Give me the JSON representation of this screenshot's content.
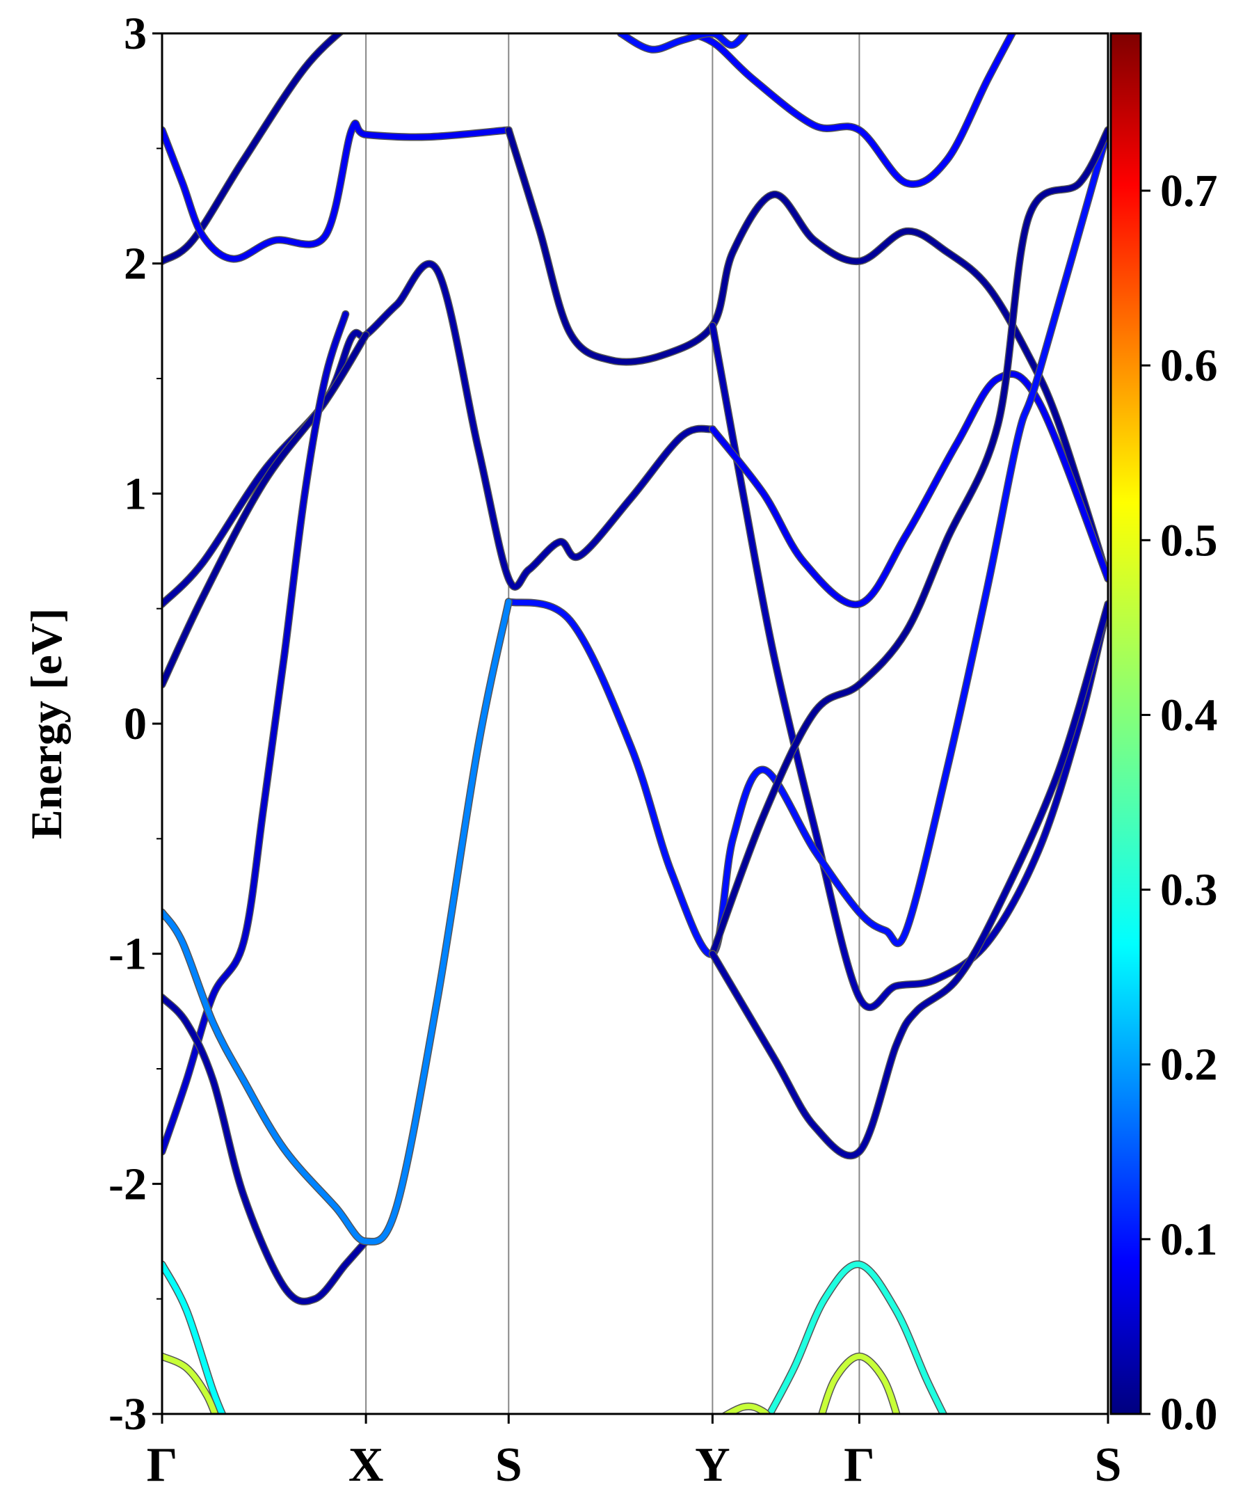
{
  "chart_data": {
    "type": "line",
    "title": "",
    "ylabel": "Energy [eV]",
    "xlabel": "",
    "ylim": [
      -3,
      3
    ],
    "grid": false,
    "y_ticks": [
      {
        "value": -3,
        "label": "-3"
      },
      {
        "value": -2,
        "label": "-2"
      },
      {
        "value": -1,
        "label": "-1"
      },
      {
        "value": 0,
        "label": "0"
      },
      {
        "value": 1,
        "label": "1"
      },
      {
        "value": 2,
        "label": "2"
      },
      {
        "value": 3,
        "label": "3"
      }
    ],
    "y_minor_ticks": [
      -2.5,
      -1.5,
      -0.5,
      0.5,
      1.5,
      2.5
    ],
    "kpoints": [
      {
        "label": "Γ",
        "k": 0
      },
      {
        "label": "X",
        "k": 1
      },
      {
        "label": "S",
        "k": 1.7
      },
      {
        "label": "Y",
        "k": 2.7
      },
      {
        "label": "Γ",
        "k": 3.42
      },
      {
        "label": "S",
        "k": 4.64
      }
    ],
    "colormap": "jet",
    "colorbar": {
      "min": 0.0,
      "max": 0.79,
      "ticks": [
        {
          "value": 0.0,
          "label": "0.0"
        },
        {
          "value": 0.1,
          "label": "0.1"
        },
        {
          "value": 0.2,
          "label": "0.2"
        },
        {
          "value": 0.3,
          "label": "0.3"
        },
        {
          "value": 0.4,
          "label": "0.4"
        },
        {
          "value": 0.5,
          "label": "0.5"
        },
        {
          "value": 0.6,
          "label": "0.6"
        },
        {
          "value": 0.7,
          "label": "0.7"
        }
      ]
    },
    "series": [
      {
        "weight": 0.02,
        "points": [
          [
            0,
            2.01
          ],
          [
            0.15,
            2.1
          ],
          [
            0.4,
            2.45
          ],
          [
            0.7,
            2.85
          ],
          [
            0.93,
            3.05
          ]
        ]
      },
      {
        "weight": 0.09,
        "points": [
          [
            0,
            2.58
          ],
          [
            0.1,
            2.35
          ],
          [
            0.2,
            2.12
          ],
          [
            0.35,
            2.02
          ],
          [
            0.55,
            2.1
          ],
          [
            0.8,
            2.12
          ],
          [
            0.93,
            2.58
          ],
          [
            1.0,
            2.56
          ],
          [
            1.3,
            2.55
          ],
          [
            1.7,
            2.58
          ]
        ]
      },
      {
        "weight": 0.02,
        "points": [
          [
            1.7,
            2.58
          ],
          [
            1.85,
            2.15
          ],
          [
            2.0,
            1.7
          ],
          [
            2.2,
            1.58
          ],
          [
            2.45,
            1.6
          ],
          [
            2.7,
            1.73
          ],
          [
            2.8,
            2.05
          ],
          [
            3.0,
            2.3
          ],
          [
            3.2,
            2.1
          ],
          [
            3.42,
            2.01
          ],
          [
            3.65,
            2.14
          ],
          [
            3.85,
            2.05
          ],
          [
            4.05,
            1.9
          ],
          [
            4.25,
            1.6
          ],
          [
            4.4,
            1.3
          ],
          [
            4.64,
            0.63
          ]
        ]
      },
      {
        "weight": 0.03,
        "points": [
          [
            0,
            0.52
          ],
          [
            0.2,
            0.7
          ],
          [
            0.5,
            1.1
          ],
          [
            0.8,
            1.4
          ],
          [
            0.93,
            1.68
          ],
          [
            1.0,
            1.69
          ],
          [
            1.15,
            1.82
          ],
          [
            1.35,
            1.97
          ],
          [
            1.55,
            1.2
          ],
          [
            1.7,
            0.63
          ],
          [
            1.8,
            0.67
          ],
          [
            1.95,
            0.79
          ],
          [
            2.05,
            0.73
          ],
          [
            2.3,
            0.98
          ],
          [
            2.55,
            1.25
          ],
          [
            2.7,
            1.28
          ]
        ]
      },
      {
        "weight": 0.02,
        "points": [
          [
            0,
            0.17
          ],
          [
            0.2,
            0.55
          ],
          [
            0.5,
            1.05
          ],
          [
            0.8,
            1.4
          ],
          [
            1.0,
            1.69
          ]
        ]
      },
      {
        "weight": 0.06,
        "points": [
          [
            0.9,
            1.78
          ],
          [
            0.8,
            1.5
          ],
          [
            0.7,
            1.0
          ],
          [
            0.6,
            0.3
          ],
          [
            0.5,
            -0.35
          ],
          [
            0.4,
            -0.95
          ],
          [
            0.25,
            -1.18
          ],
          [
            0.12,
            -1.55
          ],
          [
            0,
            -1.86
          ]
        ]
      },
      {
        "weight": 0.04,
        "points": [
          [
            2.7,
            1.73
          ],
          [
            2.85,
            1.0
          ],
          [
            3.0,
            0.3
          ],
          [
            3.2,
            -0.45
          ],
          [
            3.42,
            -1.19
          ],
          [
            3.6,
            -1.14
          ],
          [
            3.8,
            -1.11
          ],
          [
            4.05,
            -0.95
          ],
          [
            4.3,
            -0.55
          ],
          [
            4.5,
            0.0
          ],
          [
            4.64,
            0.52
          ]
        ]
      },
      {
        "weight": 0.09,
        "points": [
          [
            2.7,
            1.28
          ],
          [
            2.95,
            1.0
          ],
          [
            3.15,
            0.7
          ],
          [
            3.42,
            0.52
          ],
          [
            3.65,
            0.82
          ],
          [
            3.9,
            1.22
          ],
          [
            4.1,
            1.5
          ],
          [
            4.3,
            1.4
          ],
          [
            4.64,
            0.63
          ]
        ]
      },
      {
        "weight": 0.11,
        "points": [
          [
            1.7,
            0.53
          ],
          [
            2.0,
            0.45
          ],
          [
            2.3,
            -0.1
          ],
          [
            2.5,
            -0.65
          ],
          [
            2.7,
            -1.0
          ],
          [
            2.8,
            -0.5
          ],
          [
            2.95,
            -0.2
          ],
          [
            3.2,
            -0.55
          ],
          [
            3.42,
            -0.82
          ],
          [
            3.55,
            -0.9
          ],
          [
            3.65,
            -0.9
          ],
          [
            3.85,
            -0.2
          ],
          [
            4.05,
            0.6
          ],
          [
            4.2,
            1.25
          ],
          [
            4.3,
            1.52
          ],
          [
            4.64,
            2.58
          ]
        ]
      },
      {
        "weight": 0.02,
        "points": [
          [
            2.7,
            -1.0
          ],
          [
            2.95,
            -0.4
          ],
          [
            3.2,
            0.05
          ],
          [
            3.42,
            0.17
          ],
          [
            3.65,
            0.4
          ],
          [
            3.85,
            0.8
          ],
          [
            4.1,
            1.3
          ],
          [
            4.25,
            2.2
          ],
          [
            4.5,
            2.35
          ],
          [
            4.64,
            2.58
          ]
        ]
      },
      {
        "weight": 0.03,
        "points": [
          [
            2.7,
            -1.0
          ],
          [
            3.0,
            -1.45
          ],
          [
            3.2,
            -1.75
          ],
          [
            3.42,
            -1.86
          ],
          [
            3.6,
            -1.4
          ],
          [
            3.7,
            -1.25
          ],
          [
            3.9,
            -1.11
          ],
          [
            4.1,
            -0.8
          ],
          [
            4.4,
            -0.2
          ],
          [
            4.64,
            0.52
          ]
        ]
      },
      {
        "weight": 0.1,
        "points": [
          [
            2.6,
            3.0
          ],
          [
            2.72,
            2.95
          ],
          [
            2.9,
            2.8
          ],
          [
            3.2,
            2.6
          ],
          [
            3.42,
            2.58
          ],
          [
            3.65,
            2.35
          ],
          [
            3.85,
            2.45
          ],
          [
            4.05,
            2.8
          ],
          [
            4.2,
            3.05
          ]
        ]
      },
      {
        "weight": 0.11,
        "points": [
          [
            2.25,
            3.0
          ],
          [
            2.4,
            2.93
          ],
          [
            2.55,
            2.97
          ],
          [
            2.7,
            3.0
          ],
          [
            2.8,
            2.95
          ],
          [
            2.9,
            3.05
          ]
        ]
      },
      {
        "weight": 0.03,
        "points": [
          [
            0,
            -1.19
          ],
          [
            0.12,
            -1.3
          ],
          [
            0.25,
            -1.55
          ],
          [
            0.4,
            -2.05
          ],
          [
            0.6,
            -2.45
          ],
          [
            0.75,
            -2.5
          ],
          [
            0.9,
            -2.35
          ],
          [
            1.0,
            -2.25
          ]
        ]
      },
      {
        "weight": 0.2,
        "points": [
          [
            0,
            -0.82
          ],
          [
            0.1,
            -0.95
          ],
          [
            0.25,
            -1.3
          ],
          [
            0.4,
            -1.55
          ],
          [
            0.6,
            -1.85
          ],
          [
            0.85,
            -2.1
          ],
          [
            1.0,
            -2.25
          ],
          [
            1.15,
            -2.1
          ],
          [
            1.35,
            -1.2
          ],
          [
            1.55,
            -0.1
          ],
          [
            1.7,
            0.53
          ]
        ]
      },
      {
        "weight": 0.3,
        "points": [
          [
            0,
            -2.35
          ],
          [
            0.12,
            -2.55
          ],
          [
            0.25,
            -2.9
          ],
          [
            0.32,
            -3.05
          ]
        ]
      },
      {
        "weight": 0.45,
        "points": [
          [
            0,
            -2.75
          ],
          [
            0.12,
            -2.8
          ],
          [
            0.22,
            -2.92
          ],
          [
            0.28,
            -3.05
          ]
        ]
      },
      {
        "weight": 0.32,
        "points": [
          [
            2.95,
            -3.05
          ],
          [
            3.1,
            -2.8
          ],
          [
            3.25,
            -2.5
          ],
          [
            3.42,
            -2.35
          ],
          [
            3.6,
            -2.55
          ],
          [
            3.75,
            -2.85
          ],
          [
            3.86,
            -3.05
          ]
        ]
      },
      {
        "weight": 0.45,
        "points": [
          [
            3.22,
            -3.05
          ],
          [
            3.3,
            -2.85
          ],
          [
            3.42,
            -2.75
          ],
          [
            3.54,
            -2.85
          ],
          [
            3.62,
            -3.05
          ]
        ]
      },
      {
        "weight": 0.45,
        "points": [
          [
            2.68,
            -3.05
          ],
          [
            2.85,
            -2.97
          ],
          [
            2.95,
            -2.99
          ],
          [
            3.0,
            -3.05
          ]
        ]
      }
    ]
  }
}
